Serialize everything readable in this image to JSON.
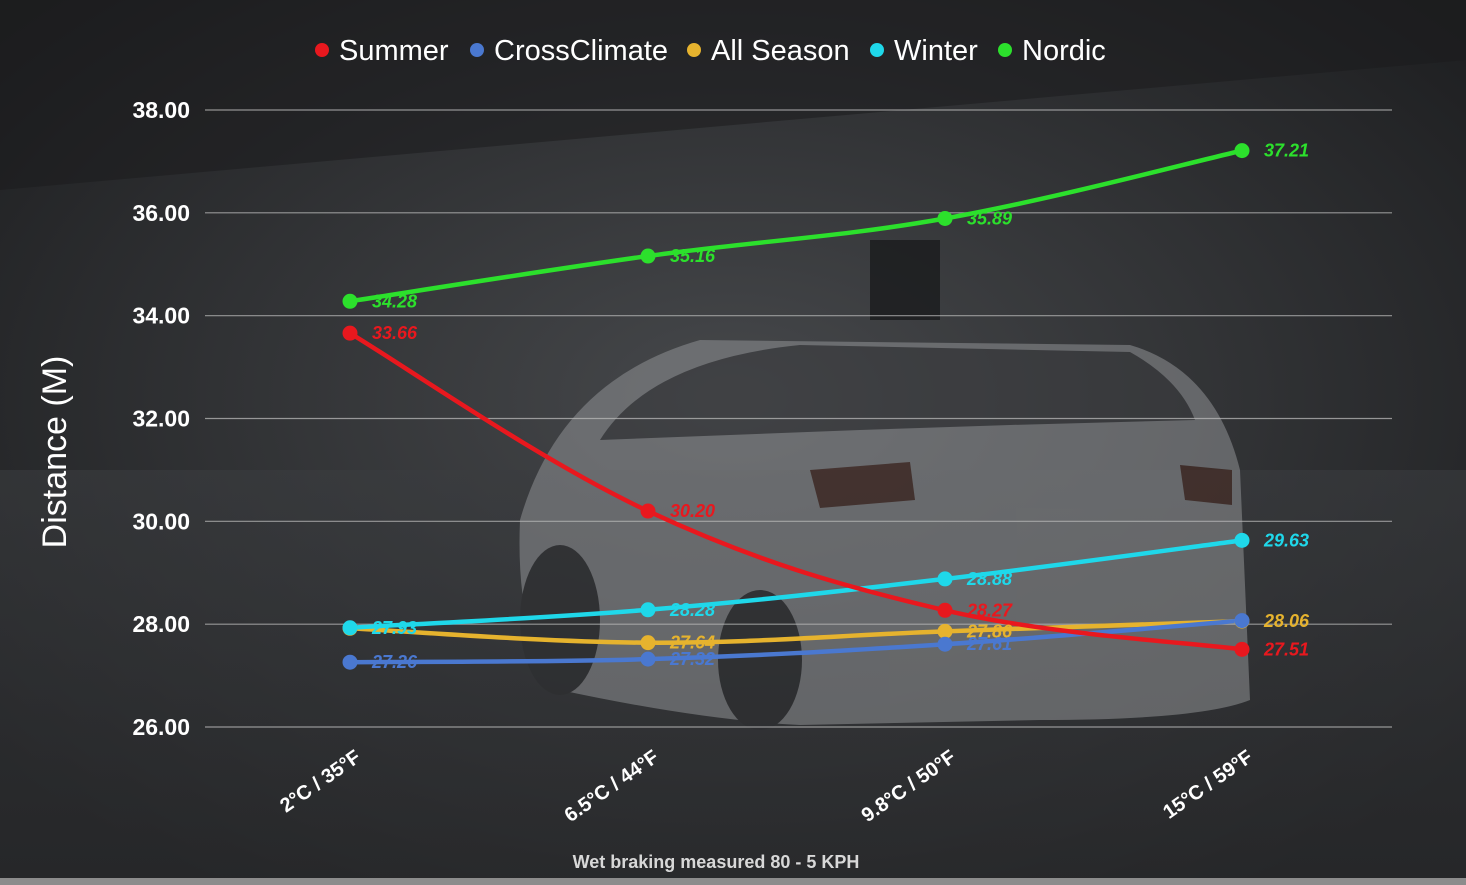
{
  "chart_data": {
    "type": "line",
    "title": "",
    "xlabel": "",
    "ylabel": "Distance (M)",
    "footnote": "Wet braking measured 80 - 5 KPH",
    "categories": [
      "2°C / 35°F",
      "6.5°C / 44°F",
      "9.8°C / 50°F",
      "15°C / 59°F"
    ],
    "ylim": [
      26,
      38
    ],
    "yticks": [
      "26.00",
      "28.00",
      "30.00",
      "32.00",
      "34.00",
      "36.00",
      "38.00"
    ],
    "legend_position": "top",
    "grid": true,
    "series": [
      {
        "name": "Summer",
        "color": "#e8181e",
        "values": [
          33.66,
          30.2,
          28.27,
          27.51
        ],
        "labels": [
          "33.66",
          "30.20",
          "28.27",
          "27.51"
        ]
      },
      {
        "name": "CrossClimate",
        "color": "#4a78d0",
        "values": [
          27.26,
          27.32,
          27.61,
          28.07
        ],
        "labels": [
          "27.26",
          "27.32",
          "27.61",
          ""
        ]
      },
      {
        "name": "All Season",
        "color": "#e6b32e",
        "values": [
          27.92,
          27.64,
          27.86,
          28.06
        ],
        "labels": [
          "",
          "27.64",
          "27.86",
          "28.06"
        ]
      },
      {
        "name": "Winter",
        "color": "#1fd8ea",
        "values": [
          27.93,
          28.28,
          28.88,
          29.63
        ],
        "labels": [
          "27.93",
          "28.28",
          "28.88",
          "29.63"
        ]
      },
      {
        "name": "Nordic",
        "color": "#2ce02c",
        "values": [
          34.28,
          35.16,
          35.89,
          37.21
        ],
        "labels": [
          "34.28",
          "35.16",
          "35.89",
          "37.21"
        ]
      }
    ]
  }
}
